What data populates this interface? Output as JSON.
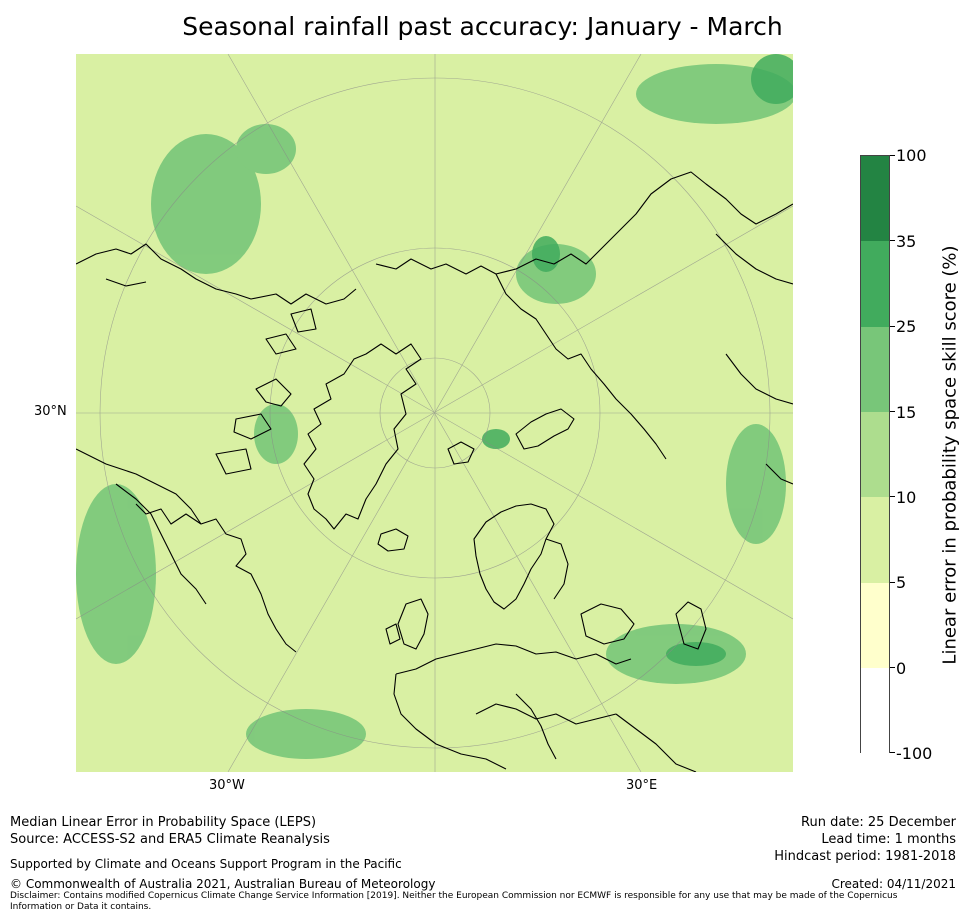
{
  "title": "Seasonal rainfall past accuracy: January - March",
  "map": {
    "projection": "north-polar-stereographic",
    "axis_labels": {
      "lat_left": "30°N",
      "lon_bottom_left": "30°W",
      "lon_bottom_right": "30°E"
    },
    "colors": {
      "ocean_base": "#d9edaa",
      "coast": "#000000",
      "grid": "#888888"
    }
  },
  "colorbar": {
    "title": "Linear error in probability space skill score (%)",
    "tick_labels": [
      "100",
      "35",
      "25",
      "15",
      "10",
      "5",
      "0",
      "-100"
    ],
    "bins": [
      {
        "range": "35 to 100",
        "color": "#238443"
      },
      {
        "range": "25 to 35",
        "color": "#41ab5d"
      },
      {
        "range": "15 to 25",
        "color": "#78c679"
      },
      {
        "range": "10 to 15",
        "color": "#addd8e"
      },
      {
        "range": "5 to 10",
        "color": "#d9f0a3"
      },
      {
        "range": "0 to 5",
        "color": "#ffffcc"
      },
      {
        "range": "-100 to 0",
        "color": "#ffffff"
      }
    ]
  },
  "footer": {
    "line1": "Median Linear Error in Probability Space (LEPS)",
    "line2": "Source: ACCESS-S2 and ERA5 Climate Reanalysis",
    "support": "Supported by Climate and Oceans Support Program in the Pacific",
    "copyright": "© Commonwealth of Australia 2021, Australian Bureau of Meteorology",
    "disclaimer": "Disclaimer: Contains modified Copernicus Climate Change Service Information [2019]. Neither the European Commission nor ECMWF is responsible for any use that may be made of the Copernicus Information or Data it contains.",
    "run_date": "Run date: 25 December",
    "lead_time": "Lead time: 1 months",
    "hindcast": "Hindcast period: 1981-2018",
    "created": "Created: 04/11/2021"
  }
}
